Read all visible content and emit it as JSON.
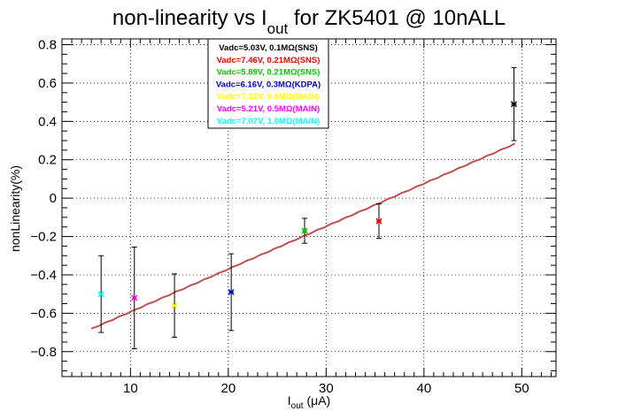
{
  "chart_data": {
    "type": "scatter",
    "title": {
      "prefix": "non-linearity vs I",
      "subscript": "out",
      "suffix": " for ZK5401 @ 10nALL"
    },
    "xlabel": {
      "base": "I",
      "subscript": "out",
      "rest": " (μA)"
    },
    "ylabel": "nonLinearity(%)",
    "xlim": [
      3,
      53.5
    ],
    "ylim": [
      -0.93,
      0.83
    ],
    "xticks": [
      10,
      20,
      30,
      40,
      50
    ],
    "yticks": [
      -0.8,
      -0.6,
      -0.4,
      -0.2,
      0,
      0.2,
      0.4,
      0.6,
      0.8
    ],
    "xtick_labels": [
      "10",
      "20",
      "30",
      "40",
      "50"
    ],
    "ytick_labels": [
      "−0.8",
      "−0.6",
      "−0.4",
      "−0.2",
      "0",
      "0.2",
      "0.4",
      "0.6",
      "0.8"
    ],
    "grid": true,
    "legend_position": "top-center",
    "series": [
      {
        "name": "Vadc=5.03V, 0.1MΩ(SNS)",
        "color": "#000000",
        "x": 49.2,
        "y": 0.49,
        "err": 0.19
      },
      {
        "name": "Vadc=7.46V, 0.21MΩ(SNS)",
        "color": "#ff0000",
        "x": 35.4,
        "y": -0.12,
        "err": 0.09
      },
      {
        "name": "Vadc=5.89V, 0.21MΩ(SNS)",
        "color": "#00cc00",
        "x": 27.8,
        "y": -0.17,
        "err": 0.065
      },
      {
        "name": "Vadc=6.16V, 0.3MΩ(KDPA)",
        "color": "#0000cc",
        "x": 20.3,
        "y": -0.49,
        "err": 0.2
      },
      {
        "name": "Vadc=7.22V, 0.5MΩ(MAIN)",
        "color": "#ffff00",
        "x": 14.5,
        "y": -0.56,
        "err": 0.165
      },
      {
        "name": "Vadc=5.21V, 0.5MΩ(MAIN)",
        "color": "#ff00ff",
        "x": 10.4,
        "y": -0.52,
        "err": 0.265
      },
      {
        "name": "Vadc=7.07V, 1.0MΩ(MAIN)",
        "color": "#00ffff",
        "x": 7.0,
        "y": -0.5,
        "err": 0.2
      }
    ],
    "fit": {
      "color": "#c0504d",
      "x": [
        6.0,
        49.3
      ],
      "y": [
        -0.68,
        0.285
      ]
    }
  }
}
